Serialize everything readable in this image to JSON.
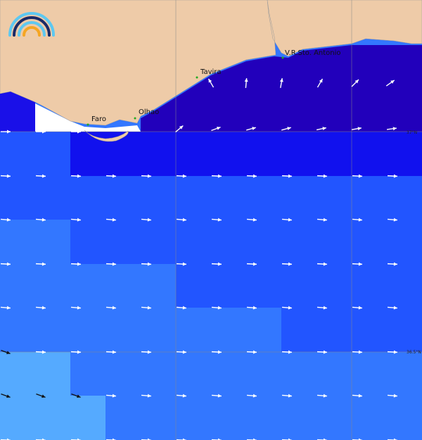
{
  "places": [
    "Faro",
    "Olhao",
    "Tavira",
    "V.R.Sto. Antonio"
  ],
  "grid_labels": [
    "37°N",
    "36.5°N"
  ]
}
